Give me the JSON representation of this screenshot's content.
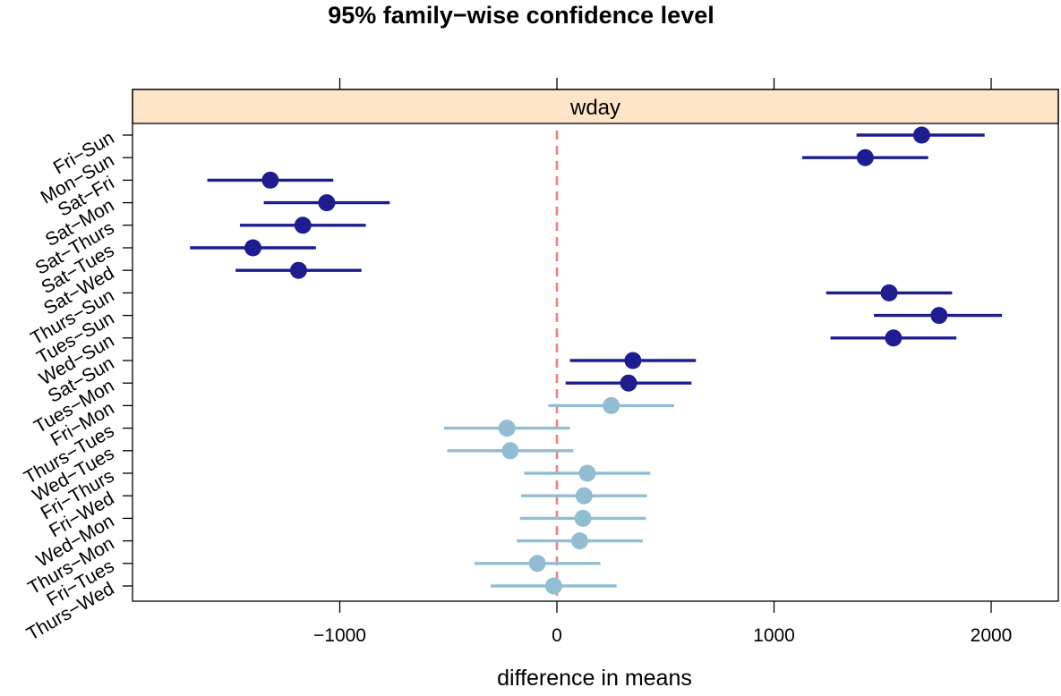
{
  "chart_data": {
    "type": "dotplot",
    "title": "95% family−wise confidence level",
    "panel_label": "wday",
    "xlabel": "difference in means",
    "ylabel": "",
    "xlim": [
      -1950,
      2300
    ],
    "x_ticks": [
      -1000,
      0,
      1000,
      2000
    ],
    "x_tick_labels": [
      "−1000",
      "0",
      "1000",
      "2000"
    ],
    "reference_line": 0,
    "grid": false,
    "colors": {
      "significant": "#1f1c8f",
      "not_significant": "#92bdd3",
      "reference": "#f08080",
      "strip": "#ffe4c8"
    },
    "comparisons": [
      {
        "label": "Fri−Sun",
        "estimate": 1680,
        "lower": 1380,
        "upper": 1970,
        "significant": true
      },
      {
        "label": "Mon−Sun",
        "estimate": 1420,
        "lower": 1130,
        "upper": 1710,
        "significant": true
      },
      {
        "label": "Sat−Fri",
        "estimate": -1320,
        "lower": -1610,
        "upper": -1030,
        "significant": true
      },
      {
        "label": "Sat−Mon",
        "estimate": -1060,
        "lower": -1350,
        "upper": -770,
        "significant": true
      },
      {
        "label": "Sat−Thurs",
        "estimate": -1170,
        "lower": -1460,
        "upper": -880,
        "significant": true
      },
      {
        "label": "Sat−Tues",
        "estimate": -1400,
        "lower": -1690,
        "upper": -1110,
        "significant": true
      },
      {
        "label": "Sat−Wed",
        "estimate": -1190,
        "lower": -1480,
        "upper": -900,
        "significant": true
      },
      {
        "label": "Thurs−Sun",
        "estimate": 1530,
        "lower": 1240,
        "upper": 1820,
        "significant": true
      },
      {
        "label": "Tues−Sun",
        "estimate": 1760,
        "lower": 1460,
        "upper": 2050,
        "significant": true
      },
      {
        "label": "Wed−Sun",
        "estimate": 1550,
        "lower": 1260,
        "upper": 1840,
        "significant": true
      },
      {
        "label": "Sat−Sun",
        "estimate": 350,
        "lower": 60,
        "upper": 640,
        "significant": true
      },
      {
        "label": "Tues−Mon",
        "estimate": 330,
        "lower": 40,
        "upper": 620,
        "significant": true
      },
      {
        "label": "Fri−Mon",
        "estimate": 250,
        "lower": -40,
        "upper": 540,
        "significant": false
      },
      {
        "label": "Thurs−Tues",
        "estimate": -230,
        "lower": -520,
        "upper": 60,
        "significant": false
      },
      {
        "label": "Wed−Tues",
        "estimate": -215,
        "lower": -505,
        "upper": 75,
        "significant": false
      },
      {
        "label": "Fri−Thurs",
        "estimate": 140,
        "lower": -150,
        "upper": 430,
        "significant": false
      },
      {
        "label": "Fri−Wed",
        "estimate": 125,
        "lower": -165,
        "upper": 415,
        "significant": false
      },
      {
        "label": "Wed−Mon",
        "estimate": 120,
        "lower": -170,
        "upper": 410,
        "significant": false
      },
      {
        "label": "Thurs−Mon",
        "estimate": 105,
        "lower": -185,
        "upper": 395,
        "significant": false
      },
      {
        "label": "Fri−Tues",
        "estimate": -90,
        "lower": -380,
        "upper": 200,
        "significant": false
      },
      {
        "label": "Thurs−Wed",
        "estimate": -15,
        "lower": -305,
        "upper": 275,
        "significant": false
      }
    ]
  }
}
